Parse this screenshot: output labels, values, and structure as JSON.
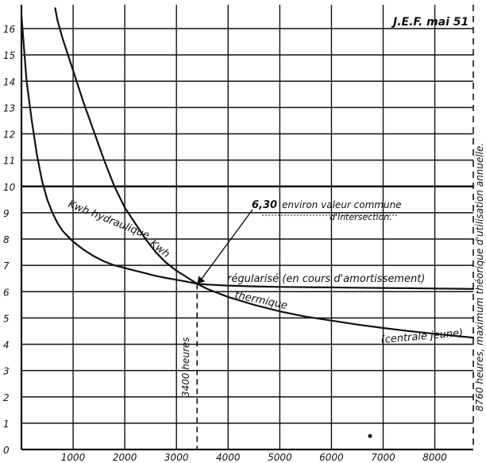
{
  "chart_data": {
    "type": "line",
    "title": "",
    "xlabel": "",
    "ylabel": "",
    "xlim": [
      0,
      8760
    ],
    "ylim": [
      0,
      16.5
    ],
    "x_ticks": [
      1000,
      2000,
      3000,
      4000,
      5000,
      6000,
      7000,
      8000
    ],
    "y_ticks": [
      0,
      1,
      2,
      3,
      4,
      5,
      6,
      7,
      8,
      9,
      10,
      11,
      12,
      13,
      14,
      15,
      16
    ],
    "series": [
      {
        "name": "Kwh hydraulique régularisé (en cours d'amortissement)",
        "x": [
          0,
          100,
          200,
          300,
          400,
          500,
          600,
          700,
          800,
          900,
          1000,
          1200,
          1400,
          1600,
          1800,
          2000,
          2200,
          2400,
          2600,
          2800,
          3000,
          3200,
          3400,
          3600,
          4000,
          4500,
          5000,
          5500,
          6000,
          6500,
          7000,
          7500,
          8000,
          8500,
          8760
        ],
        "y": [
          16.5,
          14.0,
          12.5,
          11.2,
          10.2,
          9.5,
          9.0,
          8.6,
          8.3,
          8.1,
          7.9,
          7.6,
          7.35,
          7.15,
          7.0,
          6.9,
          6.8,
          6.7,
          6.6,
          6.52,
          6.45,
          6.38,
          6.3,
          6.27,
          6.23,
          6.2,
          6.18,
          6.17,
          6.16,
          6.15,
          6.14,
          6.13,
          6.12,
          6.11,
          6.1
        ]
      },
      {
        "name": "Kwh thermique (centrale jeune)",
        "x": [
          650,
          700,
          800,
          900,
          1000,
          1200,
          1400,
          1600,
          1800,
          2000,
          2200,
          2400,
          2600,
          2800,
          3000,
          3200,
          3400,
          3600,
          4000,
          4500,
          5000,
          5500,
          6000,
          6500,
          7000,
          7500,
          8000,
          8500,
          8760
        ],
        "y": [
          16.8,
          16.3,
          15.6,
          15.0,
          14.4,
          13.2,
          12.1,
          11.0,
          10.0,
          9.2,
          8.6,
          8.0,
          7.5,
          7.1,
          6.8,
          6.55,
          6.3,
          6.1,
          5.8,
          5.5,
          5.25,
          5.05,
          4.9,
          4.75,
          4.62,
          4.5,
          4.4,
          4.3,
          4.25
        ]
      }
    ],
    "grid": true,
    "legend": "none"
  },
  "annotations": {
    "header": "J.E.F. mai 51",
    "intersection_value": "6,30",
    "intersection_text_1": "environ valeur commune",
    "intersection_text_2": "d'intersection.",
    "hydro_label_1": "Kwh hydraulique",
    "hydro_label_2": "régularisé (en cours d'amortissement)",
    "thermal_label_1": "Kwh",
    "thermal_label_2": "thermique",
    "thermal_label_3": "(centrale jeune)",
    "hours_marker": "3400 heures",
    "max_hours_note": "8760 heures, maximum théorique d'utilisation annuelle."
  }
}
